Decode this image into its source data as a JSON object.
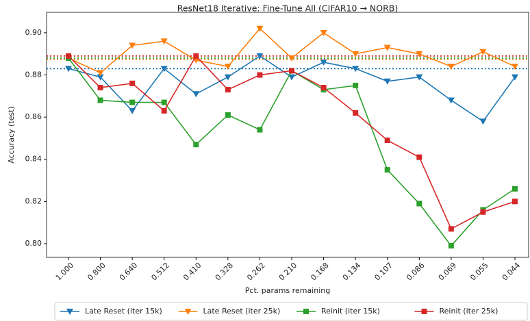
{
  "chart_data": {
    "type": "line",
    "title": "ResNet18 Iterative: Fine-Tune All (CIFAR10 → NORB)",
    "xlabel": "Pct. params remaining",
    "ylabel": "Accuracy (test)",
    "categories": [
      "1.000",
      "0.800",
      "0.640",
      "0.512",
      "0.410",
      "0.328",
      "0.262",
      "0.210",
      "0.168",
      "0.134",
      "0.107",
      "0.086",
      "0.069",
      "0.055",
      "0.044"
    ],
    "series": [
      {
        "name": "Late Reset (iter 15k)",
        "color": "#1f77b4",
        "marker": "triangle-down",
        "baseline": 0.883,
        "values": [
          0.883,
          0.879,
          0.863,
          0.883,
          0.871,
          0.879,
          0.889,
          0.879,
          0.886,
          0.883,
          0.877,
          0.879,
          0.868,
          0.858,
          0.879
        ]
      },
      {
        "name": "Late Reset (iter 25k)",
        "color": "#ff7f0e",
        "marker": "triangle-down",
        "baseline": 0.8875,
        "values": [
          0.888,
          0.881,
          0.894,
          0.896,
          0.887,
          0.884,
          0.902,
          0.888,
          0.9,
          0.89,
          0.893,
          0.89,
          0.884,
          0.891,
          0.884
        ]
      },
      {
        "name": "Reinit (iter 15k)",
        "color": "#2ca02c",
        "marker": "square",
        "baseline": 0.888,
        "values": [
          0.888,
          0.868,
          0.867,
          0.867,
          0.847,
          0.861,
          0.854,
          0.882,
          0.873,
          0.875,
          0.835,
          0.819,
          0.799,
          0.816,
          0.826
        ]
      },
      {
        "name": "Reinit (iter 25k)",
        "color": "#d62728",
        "marker": "square",
        "baseline": 0.889,
        "values": [
          0.889,
          0.874,
          0.876,
          0.863,
          0.889,
          0.873,
          0.88,
          0.882,
          0.874,
          0.862,
          0.849,
          0.841,
          0.807,
          0.815,
          0.82
        ]
      }
    ],
    "ylim": [
      0.7935,
      0.9097
    ],
    "yticks": [
      {
        "value": 0.8,
        "label": "0.80"
      },
      {
        "value": 0.82,
        "label": "0.82"
      },
      {
        "value": 0.84,
        "label": "0.84"
      },
      {
        "value": 0.86,
        "label": "0.86"
      },
      {
        "value": 0.88,
        "label": "0.88"
      },
      {
        "value": 0.9,
        "label": "0.90"
      }
    ],
    "legend": "bottom"
  }
}
